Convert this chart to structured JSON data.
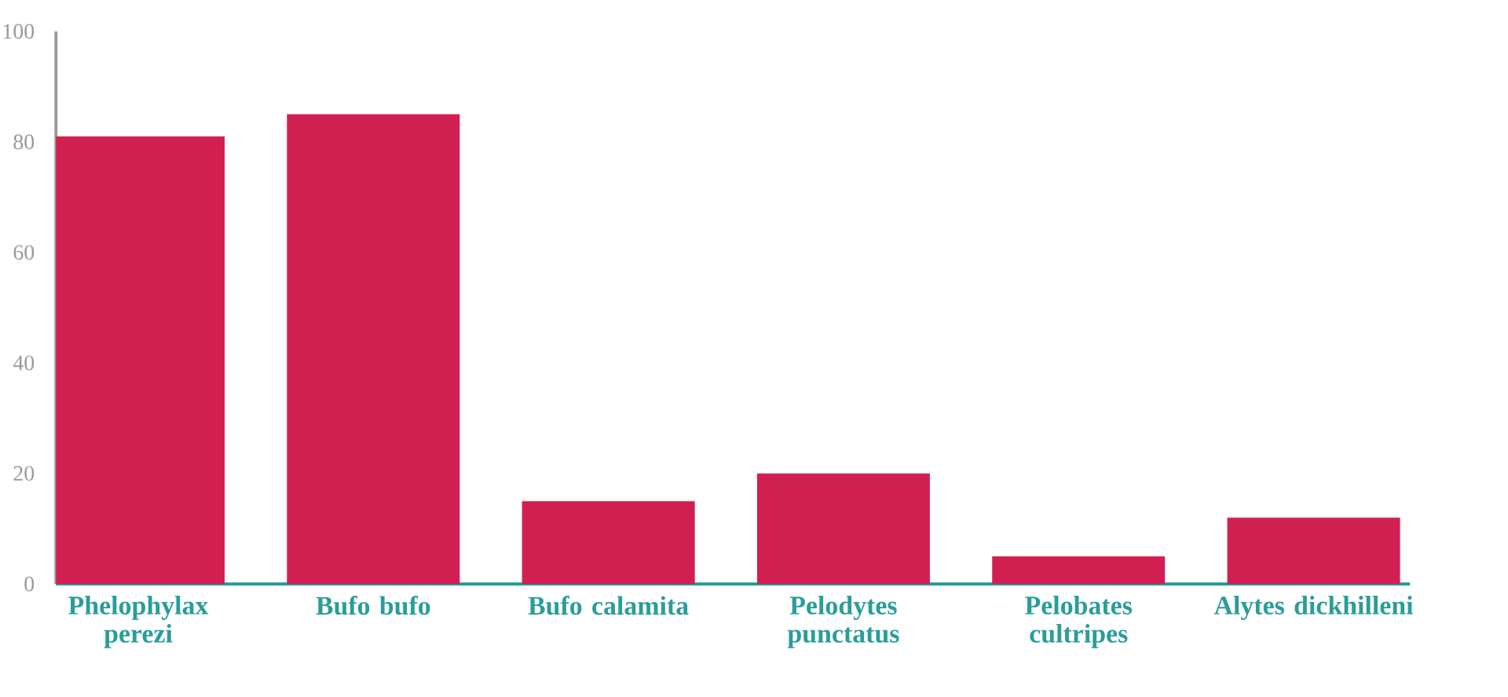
{
  "chart_data": {
    "type": "bar",
    "categories": [
      "Phelophylax perezi",
      "Bufo bufo",
      "Bufo calamita",
      "Pelodytes punctatus",
      "Pelobates cultripes",
      "Alytes dickhilleni"
    ],
    "values": [
      81,
      85,
      15,
      20,
      5,
      12
    ],
    "color": "#d21f52",
    "ylim": [
      0,
      100
    ],
    "yticks": [
      0,
      20,
      40,
      60,
      80,
      100
    ]
  }
}
